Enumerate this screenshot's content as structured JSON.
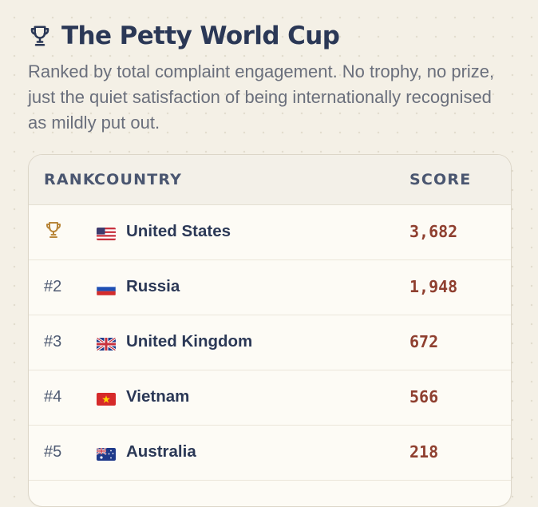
{
  "header": {
    "title": "The Petty World Cup",
    "subtitle": "Ranked by total complaint engagement. No trophy, no prize, just the quiet satisfaction of being internationally recognised as mildly put out."
  },
  "table": {
    "columns": {
      "rank": "RANK",
      "country": "COUNTRY",
      "score": "SCORE"
    },
    "rows": [
      {
        "rank": "",
        "rank_icon": "trophy-icon",
        "flag": "us-flag-icon",
        "country": "United States",
        "score": "3,682"
      },
      {
        "rank": "#2",
        "flag": "russia-flag-icon",
        "country": "Russia",
        "score": "1,948"
      },
      {
        "rank": "#3",
        "flag": "uk-flag-icon",
        "country": "United Kingdom",
        "score": "672"
      },
      {
        "rank": "#4",
        "flag": "vietnam-flag-icon",
        "country": "Vietnam",
        "score": "566"
      },
      {
        "rank": "#5",
        "flag": "australia-flag-icon",
        "country": "Australia",
        "score": "218"
      }
    ]
  },
  "colors": {
    "background": "#f4f0e6",
    "title": "#2b3856",
    "score": "#8f3f2f",
    "trophy": "#b8863a"
  }
}
